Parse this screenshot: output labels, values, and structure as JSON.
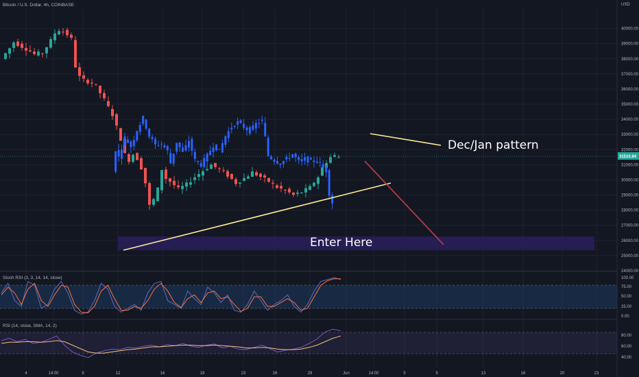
{
  "header": {
    "symbol": "Bitcoin / U.S. Dollar, 4h, COINBASE"
  },
  "colors": {
    "background": "#131722",
    "up": "#26a69a",
    "down": "#ef5350",
    "projection": "#2962ff",
    "trendline": "#ffeb99",
    "downline": "#b23a48",
    "zone": "#2a1f5c",
    "stoch_k": "#5c6bc0",
    "stoch_d": "#ff7043",
    "rsi": "#7e57c2",
    "rsi_ma": "#f0c27b"
  },
  "chart_data": [
    {
      "type": "candlestick",
      "title": "Bitcoin / U.S. Dollar, 4h, COINBASE",
      "y_axis": {
        "label": "USD",
        "ylim": [
          24000,
          41000
        ],
        "ticks": [
          "40000.00",
          "39000.00",
          "38000.00",
          "37000.00",
          "36000.00",
          "35000.00",
          "34000.00",
          "33000.00",
          "32000.00",
          "31000.00",
          "30000.00",
          "29000.00",
          "28000.00",
          "27000.00",
          "26000.00",
          "25000.00",
          "24000.00"
        ]
      },
      "x_axis": {
        "ticks": [
          "4",
          "14:00",
          "9",
          "12",
          "16",
          "19",
          "23",
          "26",
          "29",
          "Jun",
          "14:00",
          "5",
          "9",
          "13",
          "16",
          "20",
          "23"
        ]
      },
      "current_price": "31510.84",
      "price_path": [
        [
          0,
          38000
        ],
        [
          2,
          38700
        ],
        [
          3,
          39100
        ],
        [
          5,
          38800
        ],
        [
          7,
          38500
        ],
        [
          8,
          38300
        ],
        [
          10,
          38400
        ],
        [
          12,
          39200
        ],
        [
          13,
          39700
        ],
        [
          14,
          39900
        ],
        [
          15,
          39800
        ],
        [
          16,
          39600
        ],
        [
          17,
          39300
        ],
        [
          18,
          37500
        ],
        [
          19,
          36800
        ],
        [
          20,
          36600
        ],
        [
          22,
          36400
        ],
        [
          23,
          36200
        ],
        [
          25,
          35300
        ],
        [
          27,
          34300
        ],
        [
          28,
          33500
        ],
        [
          29,
          32700
        ],
        [
          30,
          31700
        ],
        [
          31,
          31300
        ],
        [
          32,
          31700
        ],
        [
          33,
          31400
        ],
        [
          34,
          30800
        ],
        [
          35,
          29800
        ],
        [
          36,
          28300
        ],
        [
          37,
          28700
        ],
        [
          38,
          29400
        ],
        [
          39,
          30700
        ],
        [
          40,
          30100
        ],
        [
          41,
          29900
        ],
        [
          43,
          29400
        ],
        [
          45,
          29700
        ],
        [
          47,
          30200
        ],
        [
          49,
          30600
        ],
        [
          51,
          31000
        ],
        [
          53,
          30700
        ],
        [
          55,
          30300
        ],
        [
          57,
          29800
        ],
        [
          59,
          30100
        ],
        [
          61,
          30500
        ],
        [
          63,
          30200
        ],
        [
          65,
          29900
        ],
        [
          67,
          29500
        ],
        [
          69,
          29300
        ],
        [
          71,
          29000
        ],
        [
          73,
          29200
        ],
        [
          75,
          29500
        ],
        [
          77,
          30200
        ],
        [
          78,
          30800
        ],
        [
          79,
          31200
        ],
        [
          80,
          31500
        ],
        [
          81,
          31600
        ],
        [
          82,
          31500
        ]
      ],
      "projection_path": [
        [
          36,
          30500
        ],
        [
          37,
          32000
        ],
        [
          38,
          31500
        ],
        [
          40,
          32800
        ],
        [
          42,
          32200
        ],
        [
          44,
          33300
        ],
        [
          46,
          34100
        ],
        [
          48,
          32900
        ],
        [
          50,
          32300
        ],
        [
          52,
          32400
        ],
        [
          54,
          31900
        ],
        [
          55,
          31100
        ],
        [
          57,
          32500
        ],
        [
          59,
          31800
        ],
        [
          61,
          32600
        ],
        [
          63,
          31300
        ],
        [
          65,
          31000
        ],
        [
          67,
          31600
        ],
        [
          69,
          32300
        ],
        [
          71,
          31900
        ],
        [
          73,
          32900
        ],
        [
          75,
          33500
        ],
        [
          77,
          33800
        ],
        [
          79,
          33500
        ],
        [
          81,
          33200
        ],
        [
          83,
          33700
        ],
        [
          85,
          33900
        ],
        [
          86,
          32800
        ],
        [
          87,
          31600
        ],
        [
          89,
          31300
        ],
        [
          91,
          31100
        ],
        [
          93,
          31400
        ],
        [
          95,
          31700
        ],
        [
          97,
          31200
        ],
        [
          99,
          31400
        ],
        [
          101,
          31200
        ],
        [
          103,
          31300
        ],
        [
          105,
          30800
        ],
        [
          106,
          30600
        ],
        [
          107,
          29100
        ],
        [
          108,
          28500
        ]
      ],
      "annotations": [
        {
          "text": "Dec/Jan pattern"
        },
        {
          "text": "Enter Here"
        }
      ]
    },
    {
      "type": "line",
      "title": "Stoch RSI (3, 3, 14, 14, close)",
      "y_axis": {
        "ticks": [
          "100.00",
          "75.00",
          "50.00",
          "25.00",
          "0.00"
        ],
        "ylim": [
          0,
          100
        ]
      },
      "series": [
        {
          "values": [
            60,
            85,
            40,
            25,
            90,
            80,
            20,
            30,
            70,
            90,
            60,
            15,
            5,
            10,
            40,
            85,
            70,
            25,
            10,
            20,
            30,
            15,
            60,
            85,
            90,
            40,
            30,
            20,
            65,
            45,
            30,
            75,
            60,
            35,
            55,
            15,
            10,
            30,
            65,
            40,
            15,
            30,
            40,
            55,
            25,
            10,
            30,
            65,
            90,
            95,
            100,
            95
          ]
        },
        {
          "values": [
            55,
            75,
            60,
            30,
            70,
            85,
            40,
            25,
            55,
            80,
            75,
            30,
            10,
            8,
            25,
            65,
            80,
            45,
            15,
            15,
            25,
            20,
            40,
            70,
            85,
            65,
            35,
            22,
            45,
            55,
            35,
            60,
            65,
            45,
            50,
            30,
            12,
            20,
            50,
            50,
            25,
            25,
            35,
            45,
            35,
            15,
            20,
            50,
            80,
            92,
            97,
            97
          ]
        }
      ]
    },
    {
      "type": "line",
      "title": "RSI (14, close, SMA, 14, 2)",
      "y_axis": {
        "ticks": [
          "80.00",
          "60.00",
          "40.00"
        ],
        "ylim": [
          20,
          90
        ]
      },
      "series": [
        {
          "values": [
            60,
            64,
            58,
            62,
            55,
            57,
            62,
            68,
            52,
            40,
            34,
            30,
            38,
            42,
            45,
            44,
            48,
            47,
            50,
            52,
            49,
            53,
            51,
            55,
            50,
            48,
            52,
            54,
            47,
            50,
            45,
            44,
            48,
            52,
            46,
            40,
            43,
            45,
            48,
            55,
            63,
            75,
            80,
            77
          ]
        },
        {
          "values": [
            55,
            57,
            57,
            58,
            58,
            57,
            58,
            60,
            58,
            52,
            46,
            40,
            38,
            38,
            40,
            42,
            44,
            45,
            47,
            49,
            49,
            50,
            51,
            52,
            52,
            51,
            51,
            52,
            51,
            50,
            49,
            47,
            47,
            48,
            47,
            45,
            44,
            44,
            45,
            48,
            52,
            58,
            64,
            68
          ]
        }
      ]
    }
  ]
}
